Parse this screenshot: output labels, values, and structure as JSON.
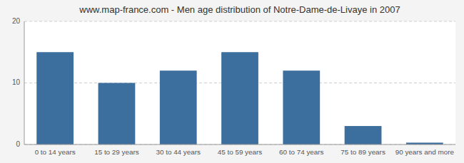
{
  "chart_data": {
    "type": "bar",
    "title": "www.map-france.com - Men age distribution of Notre-Dame-de-Livaye in 2007",
    "categories": [
      "0 to 14 years",
      "15 to 29 years",
      "30 to 44 years",
      "45 to 59 years",
      "60 to 74 years",
      "75 to 89 years",
      "90 years and more"
    ],
    "values": [
      15,
      10,
      12,
      15,
      12,
      3,
      0.3
    ],
    "color": "#3d6f9e",
    "ylim": [
      0,
      20
    ],
    "yticks": [
      0,
      10,
      20
    ],
    "grid": true
  }
}
